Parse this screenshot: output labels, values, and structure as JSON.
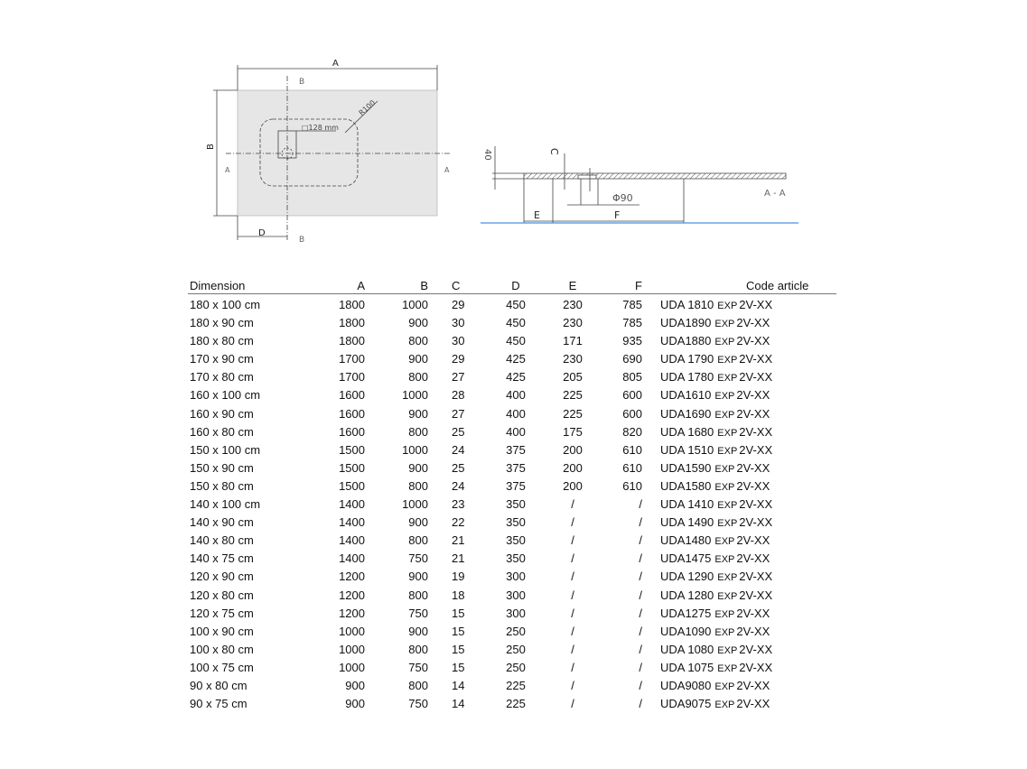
{
  "drawing": {
    "plan": {
      "dim_a": "A",
      "dim_b": "B",
      "dim_d": "D",
      "section_a": "A",
      "section_b": "B",
      "radius": "R100",
      "drain_square": "□128 mm"
    },
    "section": {
      "dim_40": "40",
      "dim_c": "C",
      "dim_e": "E",
      "dim_f": "F",
      "diameter": "Φ90",
      "section_label": "A - A",
      "floor_color": "#4a90d9"
    }
  },
  "table": {
    "headers": {
      "dimension": "Dimension",
      "a": "A",
      "b": "B",
      "c": "C",
      "d": "D",
      "e": "E",
      "f": "F",
      "code": "Code article"
    },
    "rows": [
      {
        "dimension": "180 x 100 cm",
        "a": "1800",
        "b": "1000",
        "c": "29",
        "d": "450",
        "e": "230",
        "f": "785",
        "code": "UDA 1810",
        "code_sup": "EXP",
        "code_suffix": "2V-XX"
      },
      {
        "dimension": "180 x 90 cm",
        "a": "1800",
        "b": "900",
        "c": "30",
        "d": "450",
        "e": "230",
        "f": "785",
        "code": "UDA1890",
        "code_sup": "EXP",
        "code_suffix": "2V-XX"
      },
      {
        "dimension": "180 x 80 cm",
        "a": "1800",
        "b": "800",
        "c": "30",
        "d": "450",
        "e": "171",
        "f": "935",
        "code": "UDA1880",
        "code_sup": "EXP",
        "code_suffix": "2V-XX"
      },
      {
        "dimension": "170 x 90 cm",
        "a": "1700",
        "b": "900",
        "c": "29",
        "d": "425",
        "e": "230",
        "f": "690",
        "code": "UDA 1790",
        "code_sup": "EXP",
        "code_suffix": "2V-XX"
      },
      {
        "dimension": "170 x 80 cm",
        "a": "1700",
        "b": "800",
        "c": "27",
        "d": "425",
        "e": "205",
        "f": "805",
        "code": "UDA 1780",
        "code_sup": "EXP",
        "code_suffix": "2V-XX"
      },
      {
        "dimension": "160 x 100 cm",
        "a": "1600",
        "b": "1000",
        "c": "28",
        "d": "400",
        "e": "225",
        "f": "600",
        "code": "UDA1610",
        "code_sup": "EXP",
        "code_suffix": "2V-XX"
      },
      {
        "dimension": "160 x 90 cm",
        "a": "1600",
        "b": "900",
        "c": "27",
        "d": "400",
        "e": "225",
        "f": "600",
        "code": "UDA1690",
        "code_sup": "EXP",
        "code_suffix": "2V-XX"
      },
      {
        "dimension": "160 x 80 cm",
        "a": "1600",
        "b": "800",
        "c": "25",
        "d": "400",
        "e": "175",
        "f": "820",
        "code": "UDA 1680",
        "code_sup": "EXP",
        "code_suffix": "2V-XX"
      },
      {
        "dimension": "150 x 100 cm",
        "a": "1500",
        "b": "1000",
        "c": "24",
        "d": "375",
        "e": "200",
        "f": "610",
        "code": "UDA 1510",
        "code_sup": "EXP",
        "code_suffix": "2V-XX"
      },
      {
        "dimension": "150 x 90 cm",
        "a": "1500",
        "b": "900",
        "c": "25",
        "d": "375",
        "e": "200",
        "f": "610",
        "code": "UDA1590",
        "code_sup": "EXP",
        "code_suffix": "2V-XX"
      },
      {
        "dimension": "150 x 80 cm",
        "a": "1500",
        "b": "800",
        "c": "24",
        "d": "375",
        "e": "200",
        "f": "610",
        "code": "UDA1580",
        "code_sup": "EXP",
        "code_suffix": "2V-XX"
      },
      {
        "dimension": "140 x 100 cm",
        "a": "1400",
        "b": "1000",
        "c": "23",
        "d": "350",
        "e": "/",
        "f": "/",
        "code": "UDA 1410",
        "code_sup": "EXP",
        "code_suffix": "2V-XX"
      },
      {
        "dimension": "140 x 90 cm",
        "a": "1400",
        "b": "900",
        "c": "22",
        "d": "350",
        "e": "/",
        "f": "/",
        "code": "UDA 1490",
        "code_sup": "EXP",
        "code_suffix": "2V-XX"
      },
      {
        "dimension": "140 x 80 cm",
        "a": "1400",
        "b": "800",
        "c": "21",
        "d": "350",
        "e": "/",
        "f": "/",
        "code": "UDA1480",
        "code_sup": "EXP",
        "code_suffix": "2V-XX"
      },
      {
        "dimension": "140 x 75 cm",
        "a": "1400",
        "b": "750",
        "c": "21",
        "d": "350",
        "e": "/",
        "f": "/",
        "code": "UDA1475",
        "code_sup": "EXP",
        "code_suffix": "2V-XX"
      },
      {
        "dimension": "120 x 90 cm",
        "a": "1200",
        "b": "900",
        "c": "19",
        "d": "300",
        "e": "/",
        "f": "/",
        "code": "UDA 1290",
        "code_sup": "EXP",
        "code_suffix": "2V-XX"
      },
      {
        "dimension": "120 x 80 cm",
        "a": "1200",
        "b": "800",
        "c": "18",
        "d": "300",
        "e": "/",
        "f": "/",
        "code": "UDA 1280",
        "code_sup": "EXP",
        "code_suffix": "2V-XX"
      },
      {
        "dimension": "120 x 75 cm",
        "a": "1200",
        "b": "750",
        "c": "15",
        "d": "300",
        "e": "/",
        "f": "/",
        "code": "UDA1275",
        "code_sup": "EXP",
        "code_suffix": "2V-XX"
      },
      {
        "dimension": "100 x 90 cm",
        "a": "1000",
        "b": "900",
        "c": "15",
        "d": "250",
        "e": "/",
        "f": "/",
        "code": "UDA1090",
        "code_sup": "EXP",
        "code_suffix": "2V-XX"
      },
      {
        "dimension": "100 x 80 cm",
        "a": "1000",
        "b": "800",
        "c": "15",
        "d": "250",
        "e": "/",
        "f": "/",
        "code": "UDA 1080",
        "code_sup": "EXP",
        "code_suffix": "2V-XX"
      },
      {
        "dimension": "100 x 75 cm",
        "a": "1000",
        "b": "750",
        "c": "15",
        "d": "250",
        "e": "/",
        "f": "/",
        "code": "UDA 1075",
        "code_sup": "EXP",
        "code_suffix": "2V-XX"
      },
      {
        "dimension": "90 x 80 cm",
        "a": "900",
        "b": "800",
        "c": "14",
        "d": "225",
        "e": "/",
        "f": "/",
        "code": "UDA9080",
        "code_sup": "EXP",
        "code_suffix": "2V-XX"
      },
      {
        "dimension": "90 x 75 cm",
        "a": "900",
        "b": "750",
        "c": "14",
        "d": "225",
        "e": "/",
        "f": "/",
        "code": "UDA9075",
        "code_sup": "EXP",
        "code_suffix": "2V-XX"
      }
    ]
  }
}
